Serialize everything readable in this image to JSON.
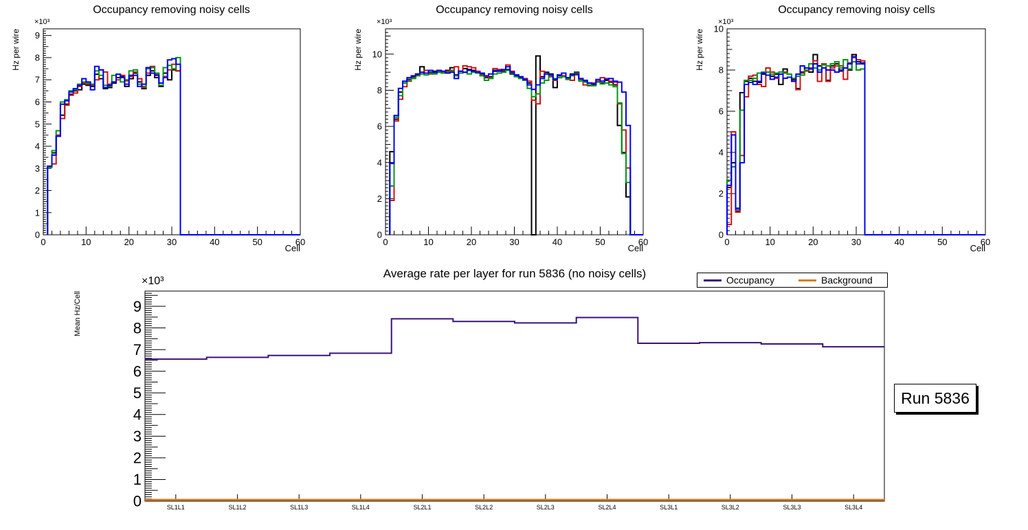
{
  "run_label": "Run 5836",
  "legend": {
    "entries": [
      {
        "label": "Occupancy",
        "color": "#3a1278"
      },
      {
        "label": "Background",
        "color": "#d67d1c"
      }
    ]
  },
  "chart_data": [
    {
      "type": "step-histogram",
      "title": "Occupancy removing noisy cells",
      "xlabel": "Cell",
      "ylabel": "Hz per wire",
      "y_exponent": "×10³",
      "xlim": [
        0,
        60
      ],
      "ylim": [
        0,
        9300
      ],
      "x_first": 1,
      "xticks": [
        0,
        10,
        20,
        30,
        40,
        50,
        60
      ],
      "ytick_values": [
        0,
        1000,
        2000,
        3000,
        4000,
        5000,
        6000,
        7000,
        8000,
        9000
      ],
      "ytick_labels": [
        "0",
        "1",
        "2",
        "3",
        "4",
        "5",
        "6",
        "7",
        "8",
        "9"
      ],
      "grid": false,
      "series": [
        {
          "name": "layer1-black",
          "color": "#000000",
          "values": [
            3050,
            3700,
            4450,
            5400,
            5900,
            6350,
            6500,
            6550,
            6800,
            6750,
            6700,
            7250,
            7050,
            6600,
            6650,
            6850,
            7100,
            7150,
            6700,
            7050,
            7300,
            6900,
            6600,
            7200,
            7400,
            7100,
            6700,
            7300,
            7000,
            7450,
            7400
          ]
        },
        {
          "name": "layer2-red",
          "color": "#cc1414",
          "values": [
            3100,
            3200,
            4500,
            5250,
            5850,
            6300,
            6400,
            6700,
            6850,
            6800,
            6750,
            7000,
            7450,
            7350,
            6800,
            6900,
            7000,
            7200,
            6950,
            7150,
            7350,
            7050,
            6650,
            7300,
            7600,
            7250,
            6850,
            7150,
            7450,
            7700,
            7400
          ]
        },
        {
          "name": "layer3-green",
          "color": "#009613",
          "values": [
            3050,
            3800,
            4700,
            6000,
            6100,
            6500,
            6550,
            6800,
            6900,
            6850,
            6800,
            7400,
            7200,
            6750,
            6700,
            7200,
            7250,
            6900,
            7000,
            7400,
            7450,
            6800,
            6700,
            7500,
            7550,
            7300,
            6750,
            7550,
            7650,
            7500,
            8000
          ]
        },
        {
          "name": "layer4-blue",
          "color": "#0000f0",
          "values": [
            3100,
            3600,
            4450,
            5900,
            6050,
            6450,
            6600,
            6750,
            7050,
            6900,
            6550,
            7600,
            7450,
            6650,
            6750,
            6900,
            7250,
            7100,
            6800,
            7200,
            7200,
            6700,
            6800,
            7550,
            7300,
            7200,
            6850,
            7100,
            7900,
            7950,
            7700
          ]
        }
      ]
    },
    {
      "type": "step-histogram",
      "title": "Occupancy removing noisy cells",
      "xlabel": "Cell",
      "ylabel": "Hz per wire",
      "y_exponent": "×10³",
      "xlim": [
        0,
        60
      ],
      "ylim": [
        0,
        11400
      ],
      "x_first": 1,
      "xticks": [
        0,
        10,
        20,
        30,
        40,
        50,
        60
      ],
      "ytick_values": [
        0,
        2000,
        4000,
        6000,
        8000,
        10000
      ],
      "ytick_labels": [
        "0",
        "2",
        "4",
        "6",
        "8",
        "10"
      ],
      "grid": false,
      "series": [
        {
          "name": "layer1-black",
          "color": "#000000",
          "values": [
            4600,
            6400,
            7900,
            8400,
            8600,
            8750,
            8850,
            9300,
            8950,
            9000,
            9050,
            9000,
            8950,
            9100,
            9250,
            8850,
            9050,
            9200,
            9150,
            9100,
            9000,
            8900,
            8700,
            8750,
            9050,
            9100,
            9050,
            9150,
            8900,
            8800,
            8700,
            8600,
            8400,
            0,
            9900,
            8750,
            9000,
            8900,
            8150,
            8800,
            8950,
            8700,
            8900,
            9000,
            8600,
            8500,
            8400,
            8300,
            8500,
            8400,
            8550,
            8450,
            8300,
            6050,
            4550,
            2100
          ]
        },
        {
          "name": "layer2-red",
          "color": "#cc1414",
          "values": [
            1900,
            6300,
            7500,
            8200,
            8500,
            8700,
            8900,
            9000,
            9100,
            8900,
            8950,
            9050,
            9000,
            9050,
            9100,
            9300,
            9050,
            9350,
            9300,
            9250,
            9050,
            8850,
            8750,
            8700,
            9200,
            9150,
            9100,
            9400,
            9050,
            8850,
            8750,
            8650,
            8500,
            7450,
            7250,
            9050,
            8900,
            8750,
            8550,
            8700,
            8800,
            8650,
            8550,
            8850,
            8600,
            8300,
            8250,
            8400,
            8500,
            8700,
            8650,
            8500,
            8450,
            7250,
            5800,
            3700
          ]
        },
        {
          "name": "layer3-green",
          "color": "#009613",
          "values": [
            2700,
            6500,
            7700,
            8400,
            8550,
            8650,
            8800,
            8900,
            8850,
            8950,
            8900,
            9000,
            8950,
            9000,
            9050,
            8800,
            8950,
            9000,
            8900,
            9000,
            8950,
            8800,
            8550,
            8650,
            8900,
            8950,
            9000,
            9100,
            8950,
            8750,
            8650,
            8550,
            8100,
            7650,
            7800,
            8400,
            8550,
            8800,
            8650,
            8700,
            8750,
            8600,
            8800,
            8950,
            8500,
            8450,
            8300,
            8250,
            8450,
            8350,
            8400,
            8300,
            8200,
            7300,
            4500,
            2900
          ]
        },
        {
          "name": "layer4-blue",
          "color": "#0000f0",
          "values": [
            3950,
            6600,
            8100,
            8500,
            8700,
            8800,
            8900,
            9000,
            8950,
            9100,
            9000,
            9100,
            9050,
            8950,
            9000,
            8650,
            9050,
            9000,
            9100,
            9050,
            9000,
            8950,
            8800,
            8900,
            9100,
            9050,
            9150,
            9300,
            9000,
            8850,
            8750,
            8600,
            8300,
            8050,
            8300,
            8650,
            8900,
            8850,
            8600,
            8850,
            8950,
            8700,
            8850,
            8900,
            8650,
            8550,
            8400,
            8350,
            8600,
            8500,
            8600,
            8650,
            8500,
            8450,
            7900,
            6050
          ]
        }
      ]
    },
    {
      "type": "step-histogram",
      "title": "Occupancy removing noisy cells",
      "xlabel": "Cell",
      "ylabel": "Hz per wire",
      "y_exponent": "×10³",
      "xlim": [
        0,
        60
      ],
      "ylim": [
        0,
        10000
      ],
      "x_first": 0,
      "xticks": [
        0,
        10,
        20,
        30,
        40,
        50,
        60
      ],
      "ytick_values": [
        0,
        2000,
        4000,
        6000,
        8000,
        10000
      ],
      "ytick_labels": [
        "0",
        "2",
        "4",
        "6",
        "8",
        "10"
      ],
      "grid": false,
      "series": [
        {
          "name": "layer1-black",
          "color": "#000000",
          "values": [
            2300,
            3500,
            1150,
            6900,
            7450,
            7600,
            7450,
            7400,
            7800,
            7900,
            7700,
            7800,
            7300,
            8050,
            7800,
            7550,
            7100,
            7900,
            8100,
            7900,
            8750,
            8200,
            8100,
            7500,
            8200,
            8300,
            7950,
            8100,
            8000,
            8750,
            8400,
            8300
          ]
        },
        {
          "name": "layer2-red",
          "color": "#cc1414",
          "values": [
            500,
            5000,
            1100,
            3850,
            6700,
            7700,
            7750,
            7300,
            7200,
            8100,
            7900,
            7600,
            7800,
            7900,
            7800,
            7500,
            7050,
            7850,
            7950,
            8100,
            8450,
            7450,
            8300,
            7450,
            8100,
            8200,
            8200,
            7550,
            8350,
            8600,
            8500,
            8450
          ]
        },
        {
          "name": "layer3-green",
          "color": "#009613",
          "values": [
            2650,
            3300,
            1300,
            6050,
            7500,
            7500,
            7600,
            7850,
            7900,
            7900,
            7800,
            7850,
            7900,
            7850,
            7800,
            7600,
            7700,
            7750,
            8000,
            8300,
            8100,
            8000,
            8250,
            8200,
            8300,
            8400,
            8100,
            8500,
            8050,
            8400,
            8000,
            8050
          ]
        },
        {
          "name": "layer4-blue",
          "color": "#0000f0",
          "values": [
            2400,
            4850,
            1250,
            3500,
            7300,
            7400,
            7300,
            7450,
            7850,
            7750,
            7550,
            7650,
            7800,
            7600,
            7650,
            7450,
            7800,
            8200,
            8100,
            8050,
            8300,
            7900,
            8100,
            8000,
            8000,
            7900,
            8000,
            8100,
            8300,
            8650,
            8300,
            8350
          ]
        }
      ]
    },
    {
      "type": "step-line",
      "title": "Average rate per layer for run 5836 (no noisy cells)",
      "xlabel": "",
      "ylabel": "Mean Hz/Cell",
      "y_exponent": "×10³",
      "ylim": [
        0,
        9700
      ],
      "categories": [
        "SL1L1",
        "SL1L2",
        "SL1L3",
        "SL1L4",
        "SL2L1",
        "SL2L2",
        "SL2L3",
        "SL2L4",
        "SL3L1",
        "SL3L2",
        "SL3L3",
        "SL3L4"
      ],
      "ytick_values": [
        0,
        1000,
        2000,
        3000,
        4000,
        5000,
        6000,
        7000,
        8000,
        9000
      ],
      "ytick_labels": [
        "0",
        "1",
        "2",
        "3",
        "4",
        "5",
        "6",
        "7",
        "8",
        "9"
      ],
      "grid": false,
      "legend_position": "top-right",
      "series": [
        {
          "name": "Occupancy",
          "color": "#3a1278",
          "width": 2,
          "values": [
            6560,
            6640,
            6730,
            6830,
            8420,
            8300,
            8230,
            8480,
            7290,
            7320,
            7260,
            7130
          ]
        },
        {
          "name": "Background",
          "color": "#d67d1c",
          "width": 3,
          "values": [
            60,
            60,
            60,
            60,
            60,
            60,
            60,
            60,
            60,
            60,
            60,
            60
          ]
        }
      ]
    }
  ]
}
